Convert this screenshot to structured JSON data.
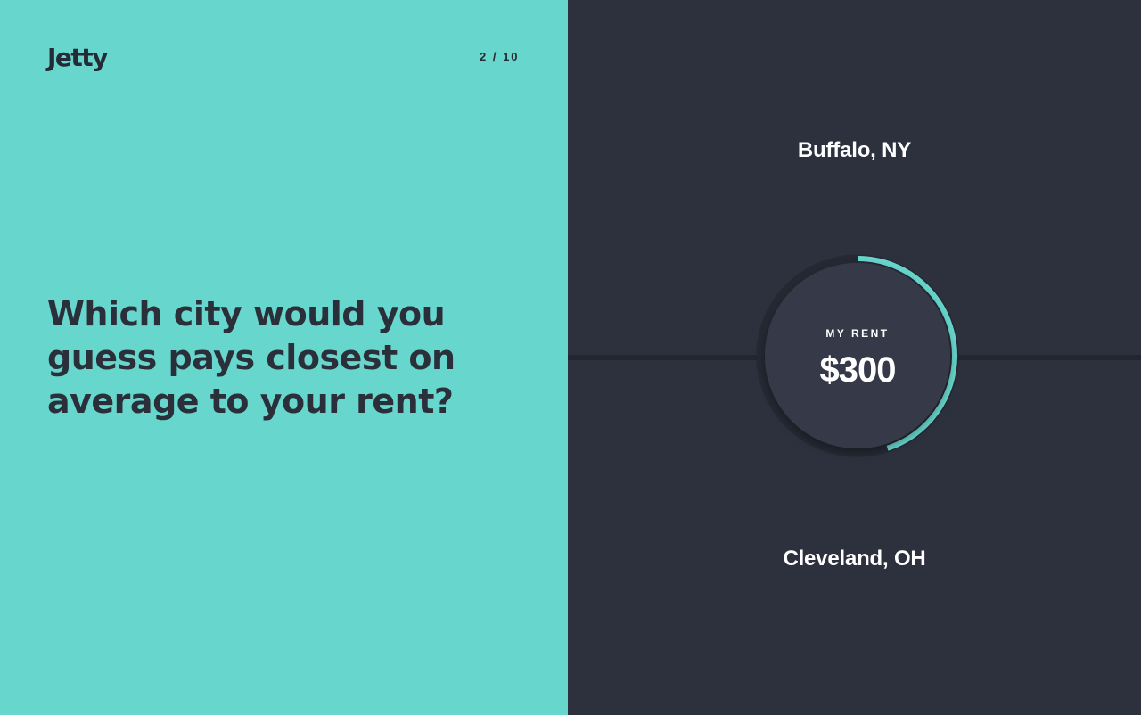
{
  "header": {
    "logo": "Jetty",
    "progress": "2 / 10"
  },
  "question": "Which city would you guess pays closest on average to your rent?",
  "options": {
    "top": "Buffalo, NY",
    "bottom": "Cleveland, OH"
  },
  "dial": {
    "label": "MY RENT",
    "value": "$300",
    "fill_fraction": 0.45
  },
  "colors": {
    "accent": "#67d6cc",
    "dark": "#2d303d",
    "disc": "#363a48"
  }
}
